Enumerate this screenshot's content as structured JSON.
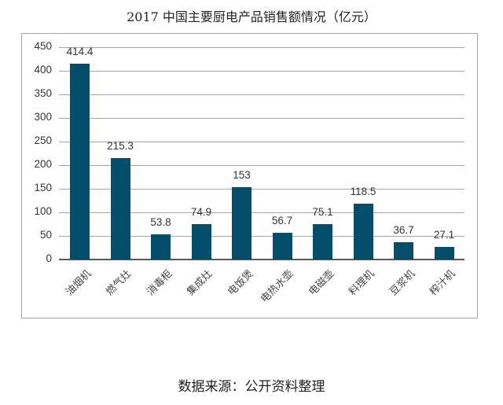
{
  "title": "2017 中国主要厨电产品销售额情况（亿元）",
  "source": "数据来源：公开资料整理",
  "colors": {
    "bar": "#034e6b",
    "grid": "#a6a6a6",
    "axis": "#595959",
    "border": "#a6a6a6"
  },
  "y_ticks": [
    "0",
    "50",
    "100",
    "150",
    "200",
    "250",
    "300",
    "350",
    "400",
    "450"
  ],
  "chart_data": {
    "type": "bar",
    "title": "2017 中国主要厨电产品销售额情况（亿元）",
    "xlabel": "",
    "ylabel": "",
    "ylim": [
      0,
      450
    ],
    "y_ticks": [
      0,
      50,
      100,
      150,
      200,
      250,
      300,
      350,
      400,
      450
    ],
    "grid": true,
    "legend": "none",
    "categories": [
      "油烟机",
      "燃气灶",
      "消毒柜",
      "集成灶",
      "电饭煲",
      "电热水壶",
      "电磁壶",
      "料理机",
      "豆浆机",
      "榨汁机"
    ],
    "values": [
      414.4,
      215.3,
      53.8,
      74.9,
      153,
      56.7,
      75.1,
      118.5,
      36.7,
      27.1
    ],
    "value_labels": [
      "414.4",
      "215.3",
      "53.8",
      "74.9",
      "153",
      "56.7",
      "75.1",
      "118.5",
      "36.7",
      "27.1"
    ],
    "annotation": "数据来源：公开资料整理"
  }
}
